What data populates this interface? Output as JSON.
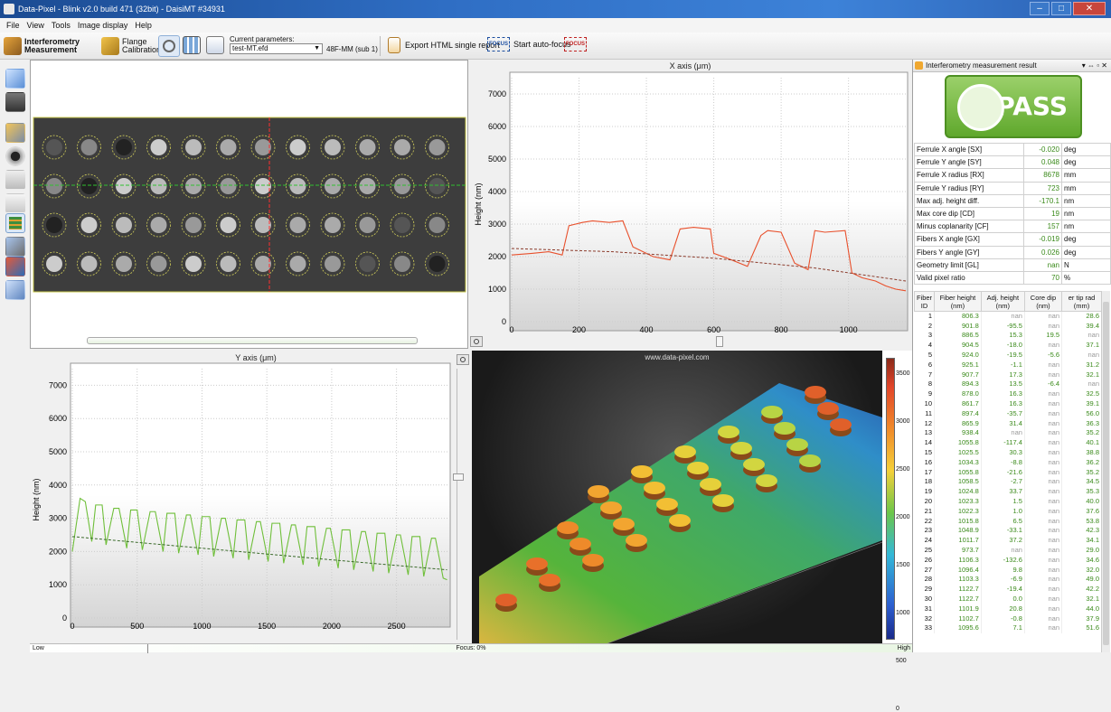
{
  "window": {
    "title": "Data-Pixel - Blink v2.0 build 471 (32bit) - DaisiMT #34931",
    "minimize": "–",
    "maximize": "□",
    "close": "✕"
  },
  "menu": [
    "File",
    "View",
    "Tools",
    "Image display",
    "Help"
  ],
  "toolbar": {
    "interferometry_line1": "Interferometry",
    "interferometry_line2": "Measurement",
    "flange_line1": "Flange",
    "flange_line2": "Calibration",
    "current_params_label": "Current parameters:",
    "params_file": "test-MT.efd",
    "params_suffix": "48F-MM (sub 1)",
    "export_label": "Export HTML single report",
    "focus_icon": "FOCUS",
    "autofocus_label": "Start auto-focus",
    "nofocus_icon": "FOCUS"
  },
  "x_plot": {
    "title": "X axis (μm)",
    "ylabel": "Height (nm)"
  },
  "y_plot": {
    "title": "Y axis (μm)",
    "ylabel": "Height (nm)"
  },
  "view3d": {
    "watermark": "www.data-pixel.com"
  },
  "colorbar": {
    "ticks": [
      "3500",
      "3000",
      "2500",
      "2000",
      "1500",
      "1000",
      "500",
      "0"
    ]
  },
  "chart_data": [
    {
      "type": "line",
      "title": "X axis (μm)",
      "xlabel": "",
      "ylabel": "Height (nm)",
      "xlim": [
        0,
        1170
      ],
      "ylim": [
        0,
        7500
      ],
      "x_ticks": [
        "0",
        "200",
        "400",
        "600",
        "800",
        "1000"
      ],
      "y_ticks": [
        "0",
        "1000",
        "2000",
        "3000",
        "4000",
        "5000",
        "6000",
        "7000"
      ],
      "series": [
        {
          "color": "#e8502c",
          "x": [
            0,
            60,
            110,
            150,
            170,
            210,
            240,
            290,
            330,
            360,
            420,
            470,
            500,
            540,
            590,
            600,
            640,
            700,
            740,
            760,
            800,
            840,
            880,
            900,
            930,
            990,
            1010,
            1040,
            1080,
            1110,
            1140,
            1170
          ],
          "values": [
            2050,
            2100,
            2150,
            2050,
            2950,
            3050,
            3100,
            3050,
            3100,
            2300,
            2000,
            1900,
            2850,
            2900,
            2850,
            2100,
            1950,
            1700,
            2650,
            2800,
            2750,
            1800,
            1600,
            2800,
            2750,
            2800,
            1500,
            1350,
            1250,
            1100,
            1000,
            950
          ]
        },
        {
          "style": "dashed",
          "color": "#8b3a2a",
          "x": [
            0,
            300,
            600,
            900,
            1170
          ],
          "values": [
            2250,
            2150,
            1950,
            1650,
            1250
          ]
        }
      ]
    },
    {
      "type": "line",
      "title": "Y axis (μm)",
      "xlabel": "",
      "ylabel": "Height (nm)",
      "xlim": [
        0,
        2900
      ],
      "ylim": [
        0,
        7500
      ],
      "x_ticks": [
        "0",
        "500",
        "1000",
        "1500",
        "2000",
        "2500"
      ],
      "y_ticks": [
        "0",
        "1000",
        "2000",
        "3000",
        "4000",
        "5000",
        "6000",
        "7000"
      ],
      "series": [
        {
          "color": "#6fbf3a",
          "x": [
            0,
            60,
            100,
            150,
            180,
            230,
            260,
            320,
            360,
            420,
            450,
            500,
            540,
            600,
            640,
            700,
            730,
            790,
            820,
            880,
            910,
            970,
            1000,
            1060,
            1090,
            1150,
            1180,
            1240,
            1270,
            1330,
            1360,
            1420,
            1450,
            1510,
            1540,
            1600,
            1630,
            1690,
            1720,
            1780,
            1810,
            1870,
            1900,
            1960,
            1990,
            2050,
            2080,
            2140,
            2170,
            2230,
            2260,
            2320,
            2350,
            2410,
            2440,
            2500,
            2530,
            2590,
            2620,
            2680,
            2710,
            2770,
            2800,
            2860,
            2890
          ],
          "values": [
            2000,
            3600,
            3500,
            2300,
            3400,
            3400,
            2200,
            3300,
            3300,
            2100,
            3250,
            3250,
            2050,
            3200,
            3200,
            2000,
            3150,
            3150,
            1950,
            3100,
            3100,
            1900,
            3050,
            3050,
            1850,
            3000,
            3000,
            1800,
            2950,
            2950,
            1750,
            2900,
            2900,
            1700,
            2850,
            2850,
            1650,
            2800,
            2800,
            1600,
            2750,
            2750,
            1550,
            2700,
            2700,
            1500,
            2650,
            2650,
            1450,
            2600,
            2600,
            1400,
            2550,
            2550,
            1350,
            2500,
            2500,
            1300,
            2450,
            2450,
            1250,
            2400,
            2400,
            1200,
            1150
          ]
        },
        {
          "style": "dashed",
          "color": "#3a6a2a",
          "x": [
            0,
            1000,
            2000,
            2890
          ],
          "values": [
            2450,
            2100,
            1750,
            1450
          ]
        }
      ]
    }
  ],
  "result_panel": {
    "title": "Interferometry measurement result",
    "pin": "▾ ⇔ ▫ ✕",
    "verdict": "PASS",
    "params": [
      {
        "name": "Ferrule X angle [SX]",
        "value": "-0.020",
        "unit": "deg"
      },
      {
        "name": "Ferrule Y angle [SY]",
        "value": "0.048",
        "unit": "deg"
      },
      {
        "name": "Ferrule X radius [RX]",
        "value": "8678",
        "unit": "mm"
      },
      {
        "name": "Ferrule Y radius [RY]",
        "value": "723",
        "unit": "mm"
      },
      {
        "name": "Max adj. height diff.",
        "value": "-170.1",
        "unit": "nm"
      },
      {
        "name": "Max core dip [CD]",
        "value": "19",
        "unit": "nm"
      },
      {
        "name": "Minus coplanarity [CF]",
        "value": "157",
        "unit": "nm"
      },
      {
        "name": "Fibers X angle [GX]",
        "value": "-0.019",
        "unit": "deg"
      },
      {
        "name": "Fibers Y angle [GY]",
        "value": "0.026",
        "unit": "deg"
      },
      {
        "name": "Geometry limit [GL]",
        "value": "nan",
        "unit": "N"
      },
      {
        "name": "Valid pixel ratio",
        "value": "70",
        "unit": "%"
      }
    ],
    "table_headers": [
      "Fiber ID",
      "Fiber height (nm)",
      "Adj. height (nm)",
      "Core dip (nm)",
      "er tip rad (mm)"
    ],
    "fibers": [
      [
        "1",
        "806.3",
        "nan",
        "nan",
        "28.6"
      ],
      [
        "2",
        "901.8",
        "-95.5",
        "nan",
        "39.4"
      ],
      [
        "3",
        "886.5",
        "15.3",
        "19.5",
        "nan"
      ],
      [
        "4",
        "904.5",
        "-18.0",
        "nan",
        "37.1"
      ],
      [
        "5",
        "924.0",
        "-19.5",
        "-5.6",
        "nan"
      ],
      [
        "6",
        "925.1",
        "-1.1",
        "nan",
        "31.2"
      ],
      [
        "7",
        "907.7",
        "17.3",
        "nan",
        "32.1"
      ],
      [
        "8",
        "894.3",
        "13.5",
        "-6.4",
        "nan"
      ],
      [
        "9",
        "878.0",
        "16.3",
        "nan",
        "32.5"
      ],
      [
        "10",
        "861.7",
        "16.3",
        "nan",
        "39.1"
      ],
      [
        "11",
        "897.4",
        "-35.7",
        "nan",
        "56.0"
      ],
      [
        "12",
        "865.9",
        "31.4",
        "nan",
        "36.3"
      ],
      [
        "13",
        "938.4",
        "nan",
        "nan",
        "35.2"
      ],
      [
        "14",
        "1055.8",
        "-117.4",
        "nan",
        "40.1"
      ],
      [
        "15",
        "1025.5",
        "30.3",
        "nan",
        "38.8"
      ],
      [
        "16",
        "1034.3",
        "-8.8",
        "nan",
        "36.2"
      ],
      [
        "17",
        "1055.8",
        "-21.6",
        "nan",
        "35.2"
      ],
      [
        "18",
        "1058.5",
        "-2.7",
        "nan",
        "34.5"
      ],
      [
        "19",
        "1024.8",
        "33.7",
        "nan",
        "35.3"
      ],
      [
        "20",
        "1023.3",
        "1.5",
        "nan",
        "40.0"
      ],
      [
        "21",
        "1022.3",
        "1.0",
        "nan",
        "37.6"
      ],
      [
        "22",
        "1015.8",
        "6.5",
        "nan",
        "53.8"
      ],
      [
        "23",
        "1048.9",
        "-33.1",
        "nan",
        "42.3"
      ],
      [
        "24",
        "1011.7",
        "37.2",
        "nan",
        "34.1"
      ],
      [
        "25",
        "973.7",
        "nan",
        "nan",
        "29.0"
      ],
      [
        "26",
        "1106.3",
        "-132.6",
        "nan",
        "34.6"
      ],
      [
        "27",
        "1096.4",
        "9.8",
        "nan",
        "32.0"
      ],
      [
        "28",
        "1103.3",
        "-6.9",
        "nan",
        "49.0"
      ],
      [
        "29",
        "1122.7",
        "-19.4",
        "nan",
        "42.2"
      ],
      [
        "30",
        "1122.7",
        "0.0",
        "nan",
        "32.1"
      ],
      [
        "31",
        "1101.9",
        "20.8",
        "nan",
        "44.0"
      ],
      [
        "32",
        "1102.7",
        "-0.8",
        "nan",
        "37.9"
      ],
      [
        "33",
        "1095.6",
        "7.1",
        "nan",
        "51.6"
      ]
    ]
  },
  "status": {
    "low": "Low",
    "focus": "Focus: 0%",
    "high": "High"
  }
}
